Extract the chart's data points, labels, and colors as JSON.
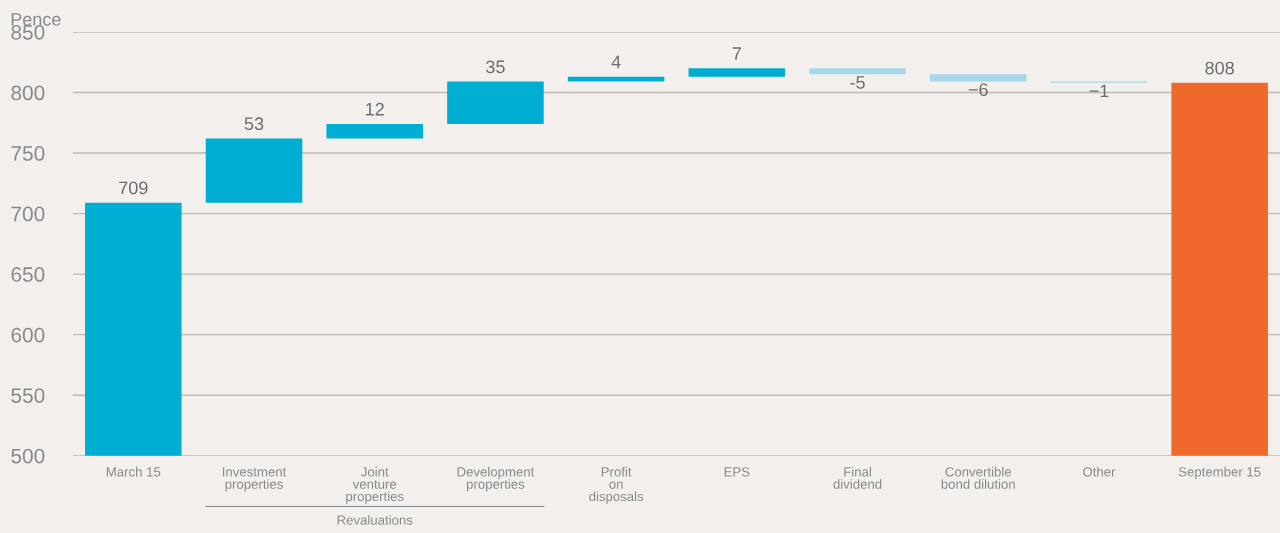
{
  "chart_data": {
    "type": "bar",
    "ylabel": "Pence",
    "categories": [
      "March 15",
      "Investment\nproperties",
      "Joint\nventure\nproperties",
      "Development\nproperties",
      "Profit\non\ndisposals",
      "EPS",
      "Final\ndividend",
      "Convertible\nbond dilution",
      "Other",
      "September 15"
    ],
    "values": [
      709,
      53,
      12,
      35,
      4,
      7,
      -5,
      -6,
      -1,
      808
    ],
    "base": [
      null,
      709,
      762,
      774,
      809,
      813,
      820,
      815,
      809,
      null
    ],
    "colors": [
      "#00aed3",
      "#00aed3",
      "#00aed3",
      "#00aed3",
      "#00aed3",
      "#00aed3",
      "#a6d8ea",
      "#a6d8ea",
      "#a6d8ea",
      "#f0692c"
    ],
    "value_labels": [
      "709",
      "53",
      "12",
      "35",
      "4",
      "7",
      "-5",
      "−6",
      "−1",
      "808"
    ],
    "ylim": [
      500,
      850
    ],
    "yticks": [
      500,
      550,
      600,
      650,
      700,
      750,
      800,
      850
    ],
    "grid": "y",
    "annotations": [
      "Revaluations"
    ]
  }
}
